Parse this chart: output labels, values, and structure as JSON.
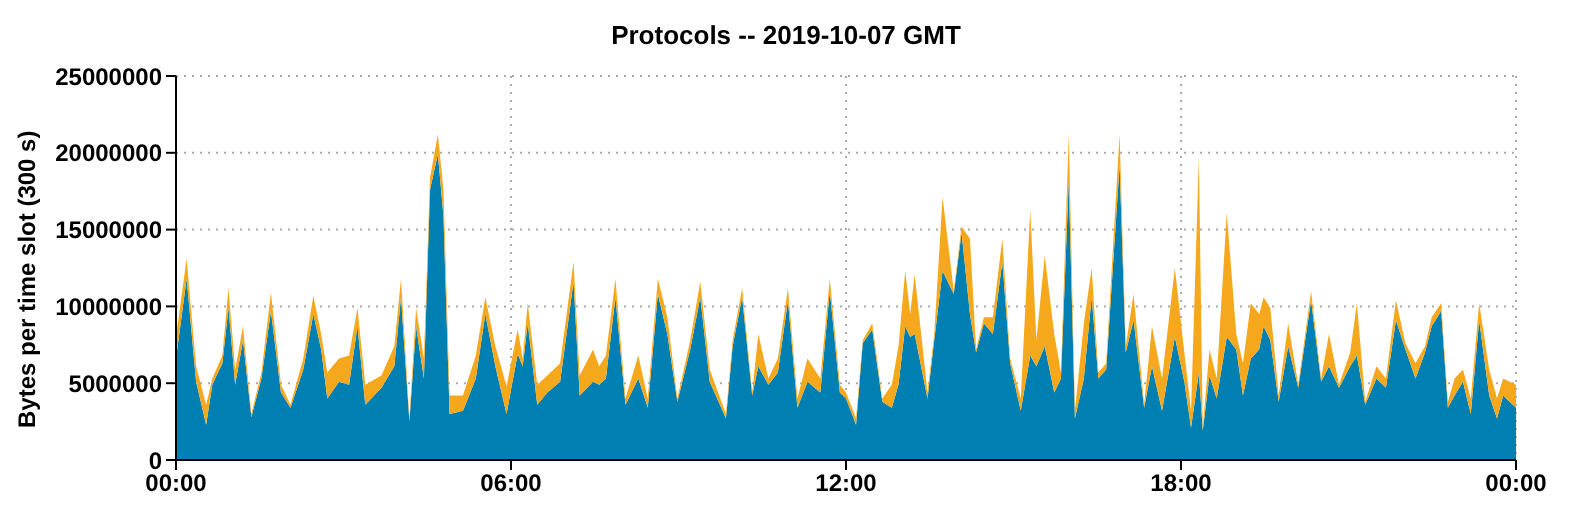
{
  "chart_data": {
    "type": "area",
    "title": "Protocols -- 2019-10-07 GMT",
    "ylabel": "Bytes per time slot (300 s)",
    "stacked": true,
    "grid": true,
    "x": [
      0,
      0.19,
      0.36,
      0.54,
      0.65,
      0.83,
      0.94,
      1.06,
      1.2,
      1.35,
      1.53,
      1.7,
      1.88,
      2.05,
      2.28,
      2.46,
      2.6,
      2.71,
      2.92,
      3.1,
      3.25,
      3.39,
      3.68,
      3.91,
      4.03,
      4.18,
      4.3,
      4.44,
      4.55,
      4.69,
      4.79,
      4.9,
      5.14,
      5.37,
      5.54,
      5.72,
      5.92,
      6.12,
      6.21,
      6.3,
      6.47,
      6.65,
      6.88,
      7.12,
      7.23,
      7.47,
      7.58,
      7.7,
      7.87,
      8.05,
      8.28,
      8.45,
      8.63,
      8.8,
      8.98,
      9.21,
      9.39,
      9.56,
      9.85,
      9.97,
      10.14,
      10.32,
      10.43,
      10.61,
      10.78,
      10.96,
      11.13,
      11.31,
      11.54,
      11.71,
      11.89,
      12.0,
      12.18,
      12.3,
      12.47,
      12.65,
      12.82,
      12.94,
      13.06,
      13.15,
      13.23,
      13.46,
      13.58,
      13.73,
      13.93,
      14.07,
      14.22,
      14.33,
      14.47,
      14.63,
      14.8,
      14.94,
      15.13,
      15.3,
      15.41,
      15.56,
      15.73,
      15.85,
      15.99,
      16.1,
      16.26,
      16.4,
      16.52,
      16.66,
      16.9,
      17.01,
      17.15,
      17.34,
      17.48,
      17.66,
      17.89,
      18.06,
      18.18,
      18.32,
      18.39,
      18.51,
      18.64,
      18.82,
      18.99,
      19.11,
      19.25,
      19.4,
      19.48,
      19.6,
      19.75,
      19.92,
      20.1,
      20.33,
      20.51,
      20.65,
      20.83,
      21.03,
      21.15,
      21.3,
      21.5,
      21.67,
      21.85,
      22.02,
      22.2,
      22.37,
      22.49,
      22.66,
      22.78,
      22.9,
      23.05,
      23.19,
      23.34,
      23.52,
      23.66,
      23.77,
      24
    ],
    "series": [
      {
        "color": "#0080b2",
        "values": [
          6600000,
          11800000,
          5100000,
          2300000,
          4900000,
          6300000,
          9900000,
          4900000,
          7800000,
          2800000,
          5300000,
          9700000,
          4400000,
          3400000,
          5900000,
          9500000,
          7200000,
          4000000,
          5100000,
          4900000,
          8700000,
          3600000,
          4700000,
          6100000,
          10600000,
          2500000,
          8700000,
          5300000,
          17600000,
          19900000,
          15900000,
          3000000,
          3200000,
          5300000,
          9500000,
          6100000,
          3000000,
          6900000,
          6100000,
          8900000,
          3600000,
          4400000,
          5100000,
          11600000,
          4200000,
          5100000,
          4900000,
          5300000,
          10600000,
          3600000,
          5300000,
          3400000,
          10800000,
          8200000,
          3800000,
          7200000,
          10600000,
          5100000,
          2700000,
          7400000,
          10600000,
          4200000,
          6100000,
          4900000,
          5700000,
          10400000,
          3400000,
          5100000,
          4400000,
          11000000,
          4400000,
          4000000,
          2300000,
          7600000,
          8500000,
          3800000,
          3400000,
          4900000,
          8700000,
          8000000,
          8200000,
          4000000,
          7800000,
          12300000,
          10800000,
          14800000,
          9500000,
          7000000,
          8900000,
          8200000,
          12900000,
          6300000,
          3200000,
          6800000,
          6100000,
          7400000,
          4400000,
          5300000,
          18200000,
          2700000,
          5300000,
          10600000,
          5300000,
          5900000,
          19200000,
          7000000,
          9100000,
          3400000,
          6100000,
          3200000,
          8000000,
          5100000,
          2100000,
          5700000,
          1900000,
          5500000,
          4000000,
          8000000,
          7200000,
          4200000,
          6600000,
          7200000,
          8700000,
          7800000,
          3800000,
          7400000,
          4700000,
          10400000,
          5100000,
          6100000,
          4700000,
          6100000,
          6800000,
          3600000,
          5300000,
          4700000,
          9100000,
          7200000,
          5300000,
          7000000,
          8700000,
          9700000,
          3400000,
          4200000,
          5100000,
          3000000,
          9100000,
          4200000,
          2700000,
          4200000,
          3400000
        ]
      },
      {
        "color": "#f6a81c",
        "values": [
          1400000,
          1300000,
          1000000,
          1300000,
          400000,
          500000,
          1300000,
          1000000,
          900000,
          200000,
          400000,
          1200000,
          500000,
          200000,
          700000,
          1200000,
          1000000,
          1700000,
          1500000,
          1900000,
          1200000,
          1300000,
          800000,
          1300000,
          1200000,
          200000,
          1200000,
          1300000,
          800000,
          1300000,
          1700000,
          1200000,
          1000000,
          1500000,
          1100000,
          1300000,
          1800000,
          1600000,
          500000,
          1300000,
          1300000,
          1100000,
          1200000,
          1300000,
          1300000,
          2100000,
          1200000,
          1500000,
          1200000,
          400000,
          1500000,
          600000,
          1000000,
          1100000,
          200000,
          600000,
          1000000,
          800000,
          300000,
          400000,
          600000,
          200000,
          2100000,
          400000,
          900000,
          800000,
          600000,
          1500000,
          900000,
          800000,
          500000,
          400000,
          400000,
          200000,
          400000,
          200000,
          1500000,
          2500000,
          3600000,
          1500000,
          3900000,
          400000,
          400000,
          4800000,
          200000,
          400000,
          4900000,
          200000,
          400000,
          1100000,
          1500000,
          300000,
          800000,
          9500000,
          1700000,
          5900000,
          3800000,
          400000,
          3000000,
          500000,
          3600000,
          1900000,
          400000,
          400000,
          2000000,
          400000,
          1700000,
          200000,
          2600000,
          2100000,
          4500000,
          1900000,
          1100000,
          14000000,
          200000,
          1700000,
          1300000,
          8100000,
          1000000,
          2100000,
          3600000,
          2300000,
          1900000,
          2100000,
          400000,
          1500000,
          200000,
          600000,
          200000,
          2100000,
          200000,
          900000,
          3400000,
          200000,
          800000,
          600000,
          1300000,
          400000,
          1000000,
          400000,
          600000,
          500000,
          400000,
          1100000,
          800000,
          1000000,
          1100000,
          1700000,
          1300000,
          1100000,
          1500000
        ]
      }
    ],
    "xlim": [
      0,
      24
    ],
    "xticks": [
      {
        "value": 0,
        "label": "00:00"
      },
      {
        "value": 6,
        "label": "06:00"
      },
      {
        "value": 12,
        "label": "12:00"
      },
      {
        "value": 18,
        "label": "18:00"
      },
      {
        "value": 24,
        "label": "00:00"
      }
    ],
    "ylim": [
      0,
      25000000
    ],
    "yticks": [
      0,
      5000000,
      10000000,
      15000000,
      20000000,
      25000000
    ]
  }
}
